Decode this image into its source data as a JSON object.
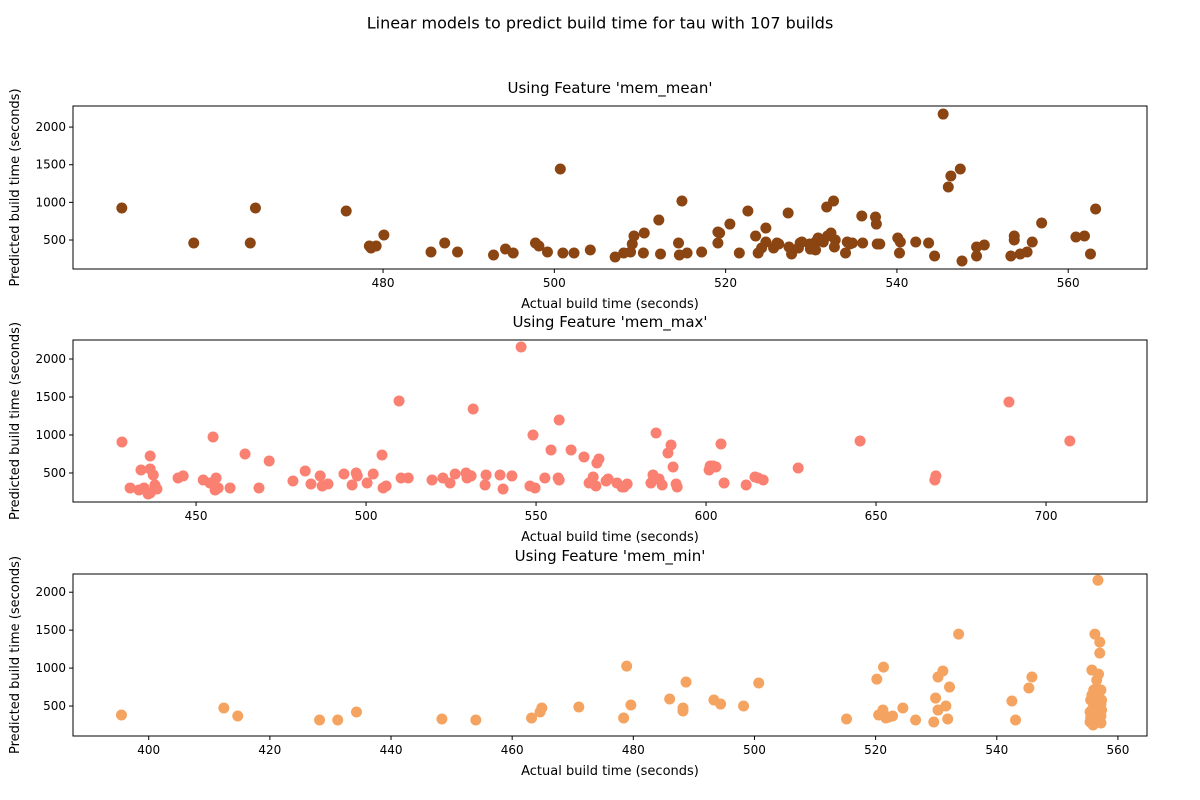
{
  "title": "Linear models to predict build time for tau with 107 builds",
  "chart_data": [
    {
      "type": "scatter",
      "title": "Using Feature 'mem_mean'",
      "x_label": "Actual build time (seconds)",
      "y_label": "Predicted build time (seconds)",
      "color": "#8b4513",
      "xlim": [
        443.8,
        569.2
      ],
      "ylim": [
        115,
        2280
      ],
      "xticks": [
        480,
        500,
        520,
        540,
        560
      ],
      "yticks": [
        500,
        1000,
        1500,
        2000
      ],
      "x": [
        449.5,
        457.9,
        464.5,
        465.1,
        475.7,
        478.4,
        478.6,
        479.2,
        480.1,
        485.6,
        487.2,
        488.7,
        492.9,
        494.3,
        495.2,
        497.8,
        498.2,
        499.2,
        500.7,
        501.0,
        502.3,
        504.2,
        507.1,
        508.1,
        508.9,
        509.1,
        509.3,
        510.4,
        510.5,
        512.2,
        512.4,
        514.5,
        514.6,
        514.9,
        515.5,
        517.2,
        519.1,
        519.1,
        519.3,
        520.5,
        521.6,
        522.6,
        523.5,
        523.8,
        524.2,
        524.7,
        524.7,
        525.6,
        526.0,
        526.2,
        527.3,
        527.4,
        527.7,
        528.5,
        528.7,
        528.9,
        529.8,
        529.9,
        530.5,
        530.5,
        530.8,
        531.4,
        531.8,
        531.9,
        532.3,
        532.6,
        532.7,
        532.8,
        534.0,
        534.2,
        534.5,
        534.8,
        535.9,
        536.0,
        537.5,
        537.6,
        537.7,
        538.0,
        540.1,
        540.3,
        540.4,
        542.2,
        543.7,
        544.4,
        545.4,
        546.0,
        546.3,
        547.4,
        547.6,
        549.3,
        549.3,
        550.2,
        553.3,
        553.7,
        553.7,
        554.4,
        555.2,
        555.8,
        556.9,
        560.9,
        561.9,
        562.6,
        563.2
      ],
      "values": [
        925,
        460,
        460,
        925,
        885,
        420,
        394,
        420,
        566,
        341,
        460,
        341,
        301,
        380,
        327,
        460,
        420,
        341,
        1443,
        327,
        327,
        367,
        274,
        327,
        341,
        447,
        553,
        327,
        593,
        766,
        314,
        460,
        301,
        1018,
        327,
        341,
        606,
        460,
        593,
        712,
        327,
        885,
        553,
        327,
        394,
        473,
        659,
        394,
        460,
        447,
        859,
        407,
        314,
        394,
        460,
        473,
        447,
        380,
        473,
        367,
        527,
        473,
        938,
        553,
        593,
        1018,
        407,
        500,
        327,
        473,
        447,
        460,
        819,
        460,
        805,
        712,
        447,
        447,
        527,
        327,
        473,
        473,
        460,
        288,
        2173,
        1204,
        1350,
        1443,
        221,
        407,
        288,
        434,
        288,
        500,
        553,
        314,
        341,
        473,
        726,
        540,
        553,
        314,
        912
      ]
    },
    {
      "type": "scatter",
      "title": "Using Feature 'mem_max'",
      "x_label": "Actual build time (seconds)",
      "y_label": "Predicted build time (seconds)",
      "color": "#fa8072",
      "xlim": [
        413.8,
        729.7
      ],
      "ylim": [
        118,
        2250
      ],
      "xticks": [
        450,
        500,
        550,
        600,
        650,
        700
      ],
      "yticks": [
        500,
        1000,
        1500,
        2000
      ],
      "x": [
        428.2,
        430.6,
        433.2,
        433.8,
        434.7,
        435.9,
        436.5,
        436.5,
        436.5,
        437.4,
        437.9,
        438.5,
        444.7,
        446.2,
        452.1,
        454.1,
        455.0,
        455.6,
        455.9,
        456.5,
        460.0,
        464.4,
        468.5,
        471.5,
        478.5,
        482.1,
        483.8,
        486.5,
        487.1,
        488.8,
        493.5,
        495.9,
        497.1,
        497.4,
        500.3,
        502.1,
        504.7,
        505.0,
        505.9,
        509.7,
        510.3,
        512.4,
        519.4,
        522.6,
        524.7,
        526.2,
        529.4,
        529.7,
        530.9,
        531.5,
        535.0,
        535.3,
        539.4,
        540.3,
        542.9,
        545.6,
        548.2,
        549.1,
        549.7,
        552.6,
        554.4,
        556.5,
        556.8,
        556.8,
        560.3,
        564.1,
        565.6,
        566.8,
        567.6,
        567.9,
        568.5,
        570.6,
        571.2,
        573.8,
        575.3,
        575.9,
        576.8,
        583.8,
        584.4,
        584.7,
        585.3,
        586.2,
        587.1,
        588.8,
        589.7,
        590.3,
        591.2,
        591.5,
        600.9,
        601.2,
        602.1,
        602.9,
        604.4,
        605.3,
        611.8,
        614.4,
        615.3,
        616.8,
        627.1,
        645.3,
        667.3,
        667.6,
        689.1,
        707.0
      ],
      "values": [
        908,
        303,
        276,
        539,
        303,
        224,
        724,
        553,
        237,
        474,
        342,
        289,
        434,
        461,
        408,
        368,
        974,
        276,
        434,
        303,
        303,
        750,
        303,
        658,
        395,
        526,
        355,
        461,
        329,
        355,
        487,
        342,
        500,
        461,
        368,
        487,
        737,
        303,
        329,
        1448,
        434,
        434,
        408,
        434,
        368,
        487,
        500,
        434,
        461,
        1342,
        342,
        474,
        474,
        289,
        461,
        2158,
        329,
        1000,
        303,
        434,
        803,
        434,
        408,
        1197,
        803,
        711,
        368,
        447,
        329,
        632,
        684,
        395,
        421,
        368,
        316,
        316,
        355,
        368,
        474,
        421,
        1026,
        421,
        342,
        763,
        868,
        579,
        355,
        316,
        539,
        592,
        592,
        579,
        882,
        368,
        342,
        447,
        434,
        408,
        566,
        921,
        408,
        461,
        1434,
        921
      ]
    },
    {
      "type": "scatter",
      "title": "Using Feature 'mem_min'",
      "x_label": "Actual build time (seconds)",
      "y_label": "Predicted build time (seconds)",
      "color": "#f4a460",
      "xlim": [
        387.5,
        564.8
      ],
      "ylim": [
        105,
        2240
      ],
      "xticks": [
        400,
        420,
        440,
        460,
        480,
        500,
        520,
        540,
        560
      ],
      "yticks": [
        500,
        1000,
        1500,
        2000
      ],
      "x": [
        395.5,
        412.4,
        414.7,
        428.2,
        431.2,
        434.3,
        448.4,
        454.0,
        463.2,
        464.6,
        464.9,
        471.0,
        478.4,
        478.9,
        479.6,
        486.0,
        488.2,
        488.2,
        488.7,
        493.3,
        494.4,
        498.2,
        500.7,
        515.2,
        520.2,
        520.5,
        521.2,
        521.3,
        521.7,
        522.2,
        522.8,
        524.5,
        526.6,
        529.6,
        529.9,
        530.3,
        530.3,
        531.1,
        531.6,
        531.9,
        532.2,
        533.7,
        542.5,
        543.1,
        545.3,
        545.8,
        555.4,
        555.5,
        555.7,
        555.7,
        555.9,
        555.9,
        556.0,
        556.0,
        556.2,
        556.2,
        556.3,
        556.3,
        556.5,
        556.5,
        556.7,
        556.7,
        556.7,
        556.8,
        556.8,
        556.8,
        557.0,
        557.0,
        557.0,
        557.2,
        557.2,
        557.2,
        557.3,
        557.3,
        555.4,
        555.5,
        555.7,
        555.9,
        556.0,
        556.2,
        556.3,
        556.5,
        556.7,
        556.8,
        557.0,
        557.2
      ],
      "values": [
        382,
        474,
        368,
        316,
        316,
        421,
        329,
        316,
        342,
        421,
        474,
        487,
        342,
        1026,
        513,
        592,
        474,
        434,
        816,
        579,
        526,
        500,
        803,
        329,
        855,
        382,
        447,
        1013,
        342,
        355,
        368,
        474,
        316,
        289,
        605,
        447,
        882,
        961,
        500,
        329,
        750,
        1448,
        566,
        316,
        737,
        882,
        289,
        579,
        447,
        974,
        382,
        250,
        711,
        513,
        1448,
        342,
        645,
        382,
        842,
        474,
        289,
        566,
        2158,
        421,
        316,
        921,
        1197,
        1342,
        513,
        368,
        711,
        276,
        447,
        579,
        421,
        342,
        645,
        579,
        316,
        474,
        540,
        737,
        382,
        645,
        408,
        526
      ]
    }
  ]
}
